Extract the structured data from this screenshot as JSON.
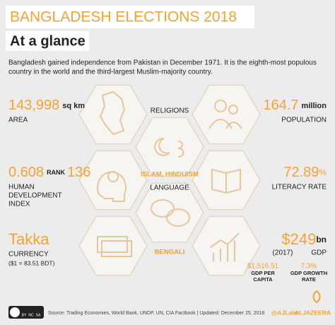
{
  "header": {
    "title": "BANGLADESH ELECTIONS 2018",
    "subtitle": "At a glance",
    "intro": [
      "Bangladesh gained independence from Pakistan in December 1971. It is the eighth-most populous",
      "country in the world and the third-largest Muslim-majority country."
    ]
  },
  "facts": {
    "area": {
      "value": "143,998",
      "unit": "sq km",
      "label": "AREA"
    },
    "population": {
      "value": "164.7",
      "unit": "million",
      "label": "POPULATION"
    },
    "religions": {
      "label": "RELIGIONS",
      "value": "ISLAM, HINDUISM"
    },
    "hdi": {
      "value": "0.608",
      "rank_label": "RANK",
      "rank": "136",
      "label": [
        "HUMAN",
        "DEVELOPMENT",
        "INDEX"
      ]
    },
    "language": {
      "label": "LANGUAGE",
      "value": "BENGALI"
    },
    "literacy": {
      "value": "72.89",
      "unit": "%",
      "label": "LITERACY RATE"
    },
    "currency": {
      "value": "Takka",
      "label": "CURRENCY",
      "note": "($1 = 83.51 BDT)"
    },
    "gdp": {
      "value": "$249",
      "unit": "bn",
      "year": "(2017)",
      "label": "GDP"
    },
    "gdp_per_capita": {
      "value": "$1,516.51",
      "label": [
        "GDP PER",
        "CAPITA"
      ]
    },
    "gdp_growth": {
      "value": "7.3%",
      "label": [
        "GDP GROWTH",
        "RATE"
      ]
    }
  },
  "footer": {
    "license": [
      "BY",
      "NC",
      "SA"
    ],
    "source": "Source: Trading Economies, World Bank, UNDP, UN, CIA Factbook | Updated: December 25, 2018",
    "handle": "@AJLabs",
    "brand": "ALJAZEERA"
  }
}
